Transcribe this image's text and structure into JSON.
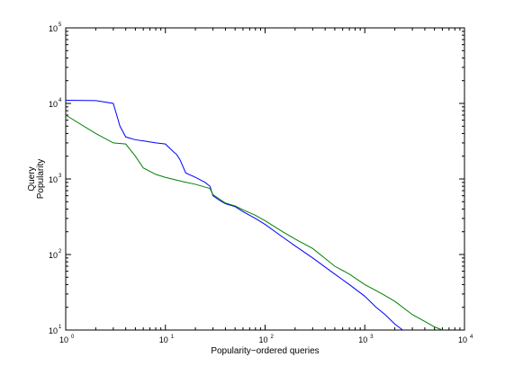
{
  "chart_data": {
    "type": "line",
    "title": "",
    "xlabel": "Popularity−ordered queries",
    "ylabel_lines": [
      "Query",
      "Popularity"
    ],
    "xscale": "log",
    "yscale": "log",
    "xlim": [
      1,
      10000
    ],
    "ylim": [
      10,
      100000
    ],
    "grid": false,
    "legend": "none",
    "x_ticks": [
      {
        "base": "10",
        "exp": "0",
        "value": 1
      },
      {
        "base": "10",
        "exp": "1",
        "value": 10
      },
      {
        "base": "10",
        "exp": "2",
        "value": 100
      },
      {
        "base": "10",
        "exp": "3",
        "value": 1000
      },
      {
        "base": "10",
        "exp": "4",
        "value": 10000
      }
    ],
    "y_ticks": [
      {
        "base": "10",
        "exp": "1",
        "value": 10
      },
      {
        "base": "10",
        "exp": "2",
        "value": 100
      },
      {
        "base": "10",
        "exp": "3",
        "value": 1000
      },
      {
        "base": "10",
        "exp": "4",
        "value": 10000
      },
      {
        "base": "10",
        "exp": "5",
        "value": 100000
      }
    ],
    "series": [
      {
        "color": "#0000ff",
        "x": [
          1,
          2,
          3,
          3.5,
          4,
          5,
          6,
          8,
          10,
          12,
          13,
          14,
          16,
          20,
          25,
          28,
          30,
          35,
          40,
          50,
          60,
          80,
          100,
          150,
          200,
          300,
          500,
          700,
          1000,
          1300,
          1600,
          2000,
          2400
        ],
        "y": [
          11000,
          10900,
          10000,
          5000,
          3600,
          3300,
          3200,
          3000,
          2900,
          2300,
          2100,
          1800,
          1200,
          1050,
          900,
          800,
          600,
          520,
          470,
          430,
          370,
          300,
          250,
          170,
          130,
          90,
          55,
          40,
          28,
          20,
          16,
          12,
          10
        ]
      },
      {
        "color": "#008000",
        "x": [
          1,
          2,
          3,
          4,
          5,
          6,
          8,
          10,
          15,
          20,
          25,
          28,
          30,
          35,
          40,
          50,
          60,
          80,
          100,
          150,
          200,
          300,
          500,
          700,
          1000,
          1500,
          2000,
          3000,
          4000,
          5000,
          6000
        ],
        "y": [
          7000,
          4000,
          3000,
          2900,
          2000,
          1400,
          1150,
          1050,
          920,
          850,
          780,
          750,
          620,
          540,
          480,
          440,
          390,
          330,
          280,
          200,
          160,
          120,
          70,
          55,
          40,
          30,
          24,
          16,
          13,
          11,
          10
        ]
      }
    ]
  }
}
